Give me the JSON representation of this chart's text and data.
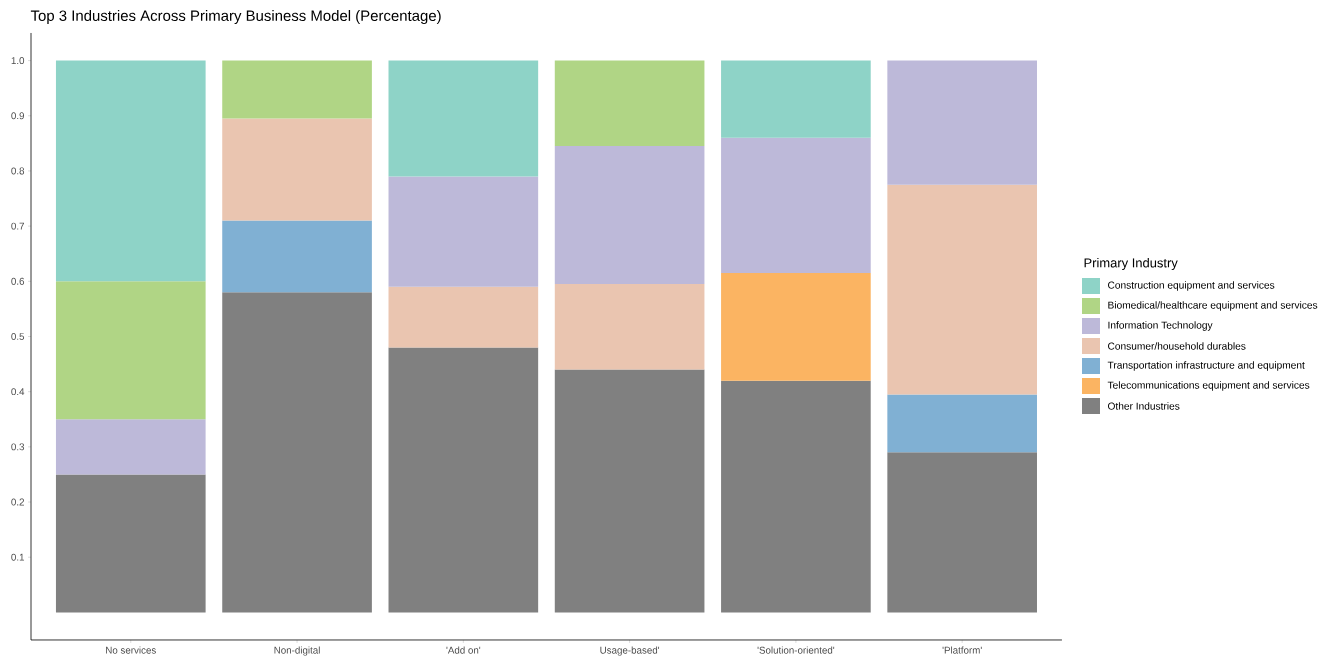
{
  "chart_data": {
    "type": "bar",
    "stacked": true,
    "title": "Top 3 Industries Across Primary Business Model (Percentage)",
    "legend_title": "Primary Industry",
    "legend": "right",
    "categories": [
      "No services",
      "Non-digital",
      "'Add on'",
      "Usage-based'",
      "'Solution-oriented'",
      "'Platform'"
    ],
    "ylim": [
      -0.05,
      1.05
    ],
    "yticks": [
      0.1,
      0.2,
      0.3,
      0.4,
      0.5,
      0.6,
      0.7,
      0.8,
      0.9,
      {
        "value": 1.0,
        "label": "1.0"
      }
    ],
    "grid": false,
    "series": [
      {
        "name": "Other Industries",
        "color": "#808080",
        "values": [
          0.25,
          0.58,
          0.48,
          0.44,
          0.42,
          0.29
        ]
      },
      {
        "name": "Telecommunications equipment and services",
        "color": "#fbb462",
        "values": [
          null,
          null,
          null,
          null,
          0.195,
          null
        ]
      },
      {
        "name": "Transportation infrastructure and equipment",
        "color": "#80b0d3",
        "values": [
          null,
          0.13,
          null,
          null,
          null,
          0.105
        ]
      },
      {
        "name": "Consumer/household durables",
        "color": "#eac5b0",
        "values": [
          null,
          0.185,
          0.11,
          0.155,
          null,
          0.38
        ]
      },
      {
        "name": "Information Technology",
        "color": "#bdb9d9",
        "values": [
          0.1,
          null,
          0.2,
          0.25,
          0.245,
          0.225
        ]
      },
      {
        "name": "Biomedical/healthcare equipment and services",
        "color": "#b0d585",
        "values": [
          0.25,
          0.105,
          null,
          0.155,
          null,
          null
        ]
      },
      {
        "name": "Construction equipment and services",
        "color": "#8ed3c7",
        "values": [
          0.4,
          null,
          0.21,
          null,
          0.14,
          null
        ]
      }
    ]
  }
}
